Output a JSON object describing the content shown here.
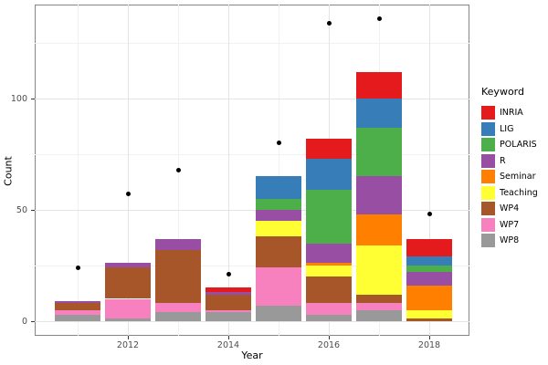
{
  "legend": {
    "title": "Keyword",
    "items": [
      {
        "label": "INRIA",
        "color": "#E41A1C"
      },
      {
        "label": "LIG",
        "color": "#377EB8"
      },
      {
        "label": "POLARIS",
        "color": "#4DAF4A"
      },
      {
        "label": "R",
        "color": "#984EA3"
      },
      {
        "label": "Seminar",
        "color": "#FF7F00"
      },
      {
        "label": "Teaching",
        "color": "#FFFF33"
      },
      {
        "label": "WP4",
        "color": "#A65628"
      },
      {
        "label": "WP7",
        "color": "#F781BF"
      },
      {
        "label": "WP8",
        "color": "#999999"
      }
    ]
  },
  "chart_data": {
    "type": "bar",
    "subtype": "stacked-bar-with-points",
    "title": "",
    "xlabel": "Year",
    "ylabel": "Count",
    "categories": [
      2011,
      2012,
      2013,
      2014,
      2015,
      2016,
      2017,
      2018
    ],
    "series": [
      {
        "name": "INRIA",
        "color": "#E41A1C",
        "values": [
          0,
          0,
          0,
          2,
          0,
          9,
          12,
          8
        ]
      },
      {
        "name": "LIG",
        "color": "#377EB8",
        "values": [
          0,
          0,
          0,
          0,
          10,
          14,
          13,
          4
        ]
      },
      {
        "name": "POLARIS",
        "color": "#4DAF4A",
        "values": [
          0,
          0,
          0,
          0,
          5,
          24,
          22,
          3
        ]
      },
      {
        "name": "R",
        "color": "#984EA3",
        "values": [
          1,
          2,
          5,
          1,
          5,
          9,
          17,
          6
        ]
      },
      {
        "name": "Seminar",
        "color": "#FF7F00",
        "values": [
          0,
          0,
          0,
          0,
          0,
          1,
          14,
          11
        ]
      },
      {
        "name": "Teaching",
        "color": "#FFFF33",
        "values": [
          0,
          0,
          0,
          0,
          7,
          5,
          22,
          4
        ]
      },
      {
        "name": "WP4",
        "color": "#A65628",
        "values": [
          3,
          14,
          24,
          7,
          14,
          12,
          4,
          1
        ]
      },
      {
        "name": "WP7",
        "color": "#F781BF",
        "values": [
          2,
          9,
          4,
          1,
          17,
          5,
          3,
          0
        ]
      },
      {
        "name": "WP8",
        "color": "#999999",
        "values": [
          3,
          1,
          4,
          4,
          7,
          3,
          5,
          0
        ]
      }
    ],
    "stack_order": "first-series-on-top",
    "points": {
      "name": "black-dots",
      "color": "#000000",
      "values": [
        24,
        57,
        68,
        21,
        80,
        134,
        136,
        48
      ]
    },
    "x_breaks": [
      2012,
      2014,
      2016,
      2018
    ],
    "x_tick_labels": [
      "2012",
      "2014",
      "2016",
      "2018"
    ],
    "x_minor_breaks": [
      2011,
      2013,
      2015,
      2017
    ],
    "y_breaks": [
      0,
      50,
      100
    ],
    "y_tick_labels": [
      "0",
      "50",
      "100"
    ],
    "y_minor_breaks": [
      25,
      75,
      125
    ],
    "xlim": [
      2010.145,
      2018.8
    ],
    "ylim": [
      -6.6,
      142.2
    ],
    "bar_width": 0.9,
    "grid": true,
    "legend_position": "right"
  }
}
